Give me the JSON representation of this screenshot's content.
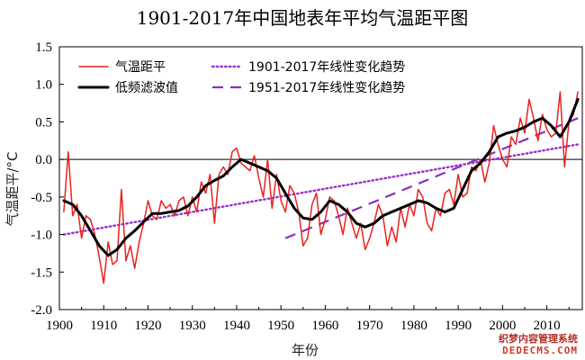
{
  "chart_data": {
    "type": "line",
    "title": "1901-2017年中国地表年平均气温距平图",
    "xlabel": "年份",
    "ylabel": "气温距平/°C",
    "xlim": [
      1900,
      2018
    ],
    "ylim": [
      -2.0,
      1.5
    ],
    "xticks": [
      "1900",
      "1910",
      "1920",
      "1930",
      "1940",
      "1950",
      "1960",
      "1970",
      "1980",
      "1990",
      "2000",
      "2010"
    ],
    "yticks": [
      "1.5",
      "1.0",
      "0.5",
      "0.0",
      "-0.5",
      "-1.0",
      "-1.5",
      "-2.0"
    ],
    "zero_line": true,
    "legend_position": "top-left",
    "series": [
      {
        "name": "气温距平",
        "color": "#e8231f",
        "style": "solid",
        "x": [
          1901,
          1902,
          1903,
          1904,
          1905,
          1906,
          1907,
          1908,
          1909,
          1910,
          1911,
          1912,
          1913,
          1914,
          1915,
          1916,
          1917,
          1918,
          1919,
          1920,
          1921,
          1922,
          1923,
          1924,
          1925,
          1926,
          1927,
          1928,
          1929,
          1930,
          1931,
          1932,
          1933,
          1934,
          1935,
          1936,
          1937,
          1938,
          1939,
          1940,
          1941,
          1942,
          1943,
          1944,
          1945,
          1946,
          1947,
          1948,
          1949,
          1950,
          1951,
          1952,
          1953,
          1954,
          1955,
          1956,
          1957,
          1958,
          1959,
          1960,
          1961,
          1962,
          1963,
          1964,
          1965,
          1966,
          1967,
          1968,
          1969,
          1970,
          1971,
          1972,
          1973,
          1974,
          1975,
          1976,
          1977,
          1978,
          1979,
          1980,
          1981,
          1982,
          1983,
          1984,
          1985,
          1986,
          1987,
          1988,
          1989,
          1990,
          1991,
          1992,
          1993,
          1994,
          1995,
          1996,
          1997,
          1998,
          1999,
          2000,
          2001,
          2002,
          2003,
          2004,
          2005,
          2006,
          2007,
          2008,
          2009,
          2010,
          2011,
          2012,
          2013,
          2014,
          2015,
          2016,
          2017
        ],
        "values": [
          -0.7,
          0.1,
          -0.75,
          -0.6,
          -1.05,
          -0.75,
          -0.8,
          -1.0,
          -1.3,
          -1.65,
          -1.1,
          -1.4,
          -1.35,
          -0.4,
          -1.35,
          -1.15,
          -1.45,
          -1.1,
          -0.85,
          -0.55,
          -0.75,
          -0.8,
          -0.55,
          -0.65,
          -0.6,
          -0.75,
          -0.55,
          -0.5,
          -0.75,
          -0.5,
          -0.7,
          -0.3,
          -0.45,
          -0.2,
          -0.85,
          -0.2,
          -0.1,
          -0.2,
          0.1,
          0.15,
          -0.05,
          -0.1,
          -0.15,
          0.05,
          -0.25,
          -0.5,
          0.0,
          -0.65,
          -0.2,
          -0.55,
          -0.7,
          -0.35,
          -0.45,
          -0.7,
          -1.15,
          -1.05,
          -0.6,
          -0.45,
          -1.0,
          -0.8,
          -0.5,
          -0.55,
          -0.75,
          -1.0,
          -0.65,
          -0.85,
          -1.05,
          -0.85,
          -1.2,
          -1.05,
          -0.85,
          -0.6,
          -0.75,
          -1.15,
          -0.9,
          -1.1,
          -0.65,
          -0.9,
          -0.6,
          -0.75,
          -0.4,
          -0.5,
          -0.85,
          -0.95,
          -0.65,
          -0.75,
          -0.45,
          -0.4,
          -0.6,
          -0.2,
          -0.5,
          -0.45,
          -0.1,
          -0.15,
          0.0,
          -0.3,
          -0.05,
          0.45,
          0.2,
          0.0,
          -0.1,
          0.3,
          0.2,
          0.55,
          0.35,
          0.8,
          0.55,
          0.25,
          0.6,
          0.4,
          0.3,
          0.35,
          0.9,
          -0.1,
          0.5,
          0.6,
          0.9
        ]
      },
      {
        "name": "低频滤波值",
        "color": "#000000",
        "style": "solid",
        "x": [
          1901,
          1903,
          1905,
          1907,
          1909,
          1911,
          1913,
          1915,
          1917,
          1919,
          1921,
          1923,
          1925,
          1927,
          1929,
          1931,
          1933,
          1935,
          1937,
          1939,
          1941,
          1943,
          1945,
          1947,
          1949,
          1951,
          1953,
          1955,
          1957,
          1959,
          1961,
          1963,
          1965,
          1967,
          1969,
          1971,
          1973,
          1975,
          1977,
          1979,
          1981,
          1983,
          1985,
          1987,
          1989,
          1991,
          1993,
          1995,
          1997,
          1999,
          2001,
          2003,
          2005,
          2007,
          2009,
          2011,
          2013,
          2015,
          2017
        ],
        "values": [
          -0.55,
          -0.6,
          -0.75,
          -0.95,
          -1.15,
          -1.28,
          -1.2,
          -1.05,
          -0.95,
          -0.83,
          -0.72,
          -0.72,
          -0.7,
          -0.68,
          -0.62,
          -0.5,
          -0.35,
          -0.28,
          -0.22,
          -0.1,
          0.0,
          -0.05,
          -0.1,
          -0.15,
          -0.25,
          -0.45,
          -0.65,
          -0.78,
          -0.8,
          -0.7,
          -0.55,
          -0.6,
          -0.7,
          -0.85,
          -0.9,
          -0.85,
          -0.75,
          -0.7,
          -0.65,
          -0.6,
          -0.55,
          -0.58,
          -0.65,
          -0.7,
          -0.65,
          -0.4,
          -0.15,
          -0.05,
          0.1,
          0.3,
          0.35,
          0.38,
          0.43,
          0.5,
          0.55,
          0.45,
          0.3,
          0.5,
          0.8
        ]
      },
      {
        "name": "1901-2017年线性变化趋势",
        "color": "#9b2fcf",
        "style": "dotted",
        "x": [
          1901,
          2017
        ],
        "values": [
          -1.0,
          0.2
        ]
      },
      {
        "name": "1951-2017年线性变化趋势",
        "color": "#8b2fbf",
        "style": "dashed",
        "x": [
          1951,
          2017
        ],
        "values": [
          -1.05,
          0.55
        ]
      }
    ]
  },
  "watermark": {
    "line1": "织梦内容管理系统",
    "line2": "DEDECMS.COM"
  }
}
